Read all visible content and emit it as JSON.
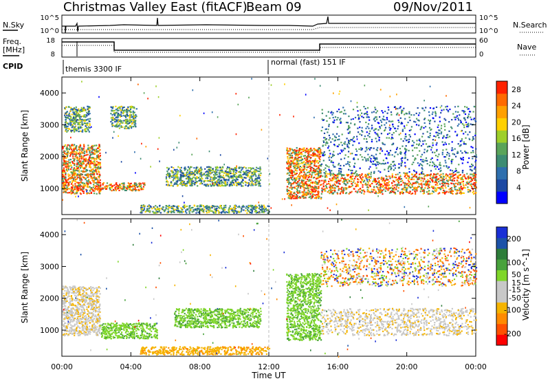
{
  "header": {
    "station": "Christmas Valley East (fitACF)",
    "beam": "Beam 09",
    "date": "09/Nov/2011"
  },
  "time_axis": {
    "label": "Time UT",
    "ticks": [
      "00:00",
      "04:00",
      "08:00",
      "12:00",
      "16:00",
      "20:00",
      "00:00"
    ]
  },
  "param_strip": {
    "nsky_label": "N.Sky",
    "nsearch_label": "N.Search",
    "freq_label": "Freq.",
    "freq_unit": "[MHz]",
    "nave_label": "Nave",
    "cpid_label": "CPID",
    "noise_left_ticks": [
      "10^5",
      "10^0"
    ],
    "noise_right_ticks": [
      "10^5",
      "10^0"
    ],
    "freq_ticks": [
      "18",
      "8"
    ],
    "nave_ticks": [
      "60",
      "0"
    ],
    "modes": [
      {
        "label": "themis 3300 IF"
      },
      {
        "label": "normal (fast) 151 IF"
      }
    ]
  },
  "colors": {
    "power": [
      "#0000ff",
      "#1d49a3",
      "#2e6fae",
      "#3d8c73",
      "#5aa45a",
      "#9ecf2a",
      "#ffd000",
      "#ffa000",
      "#ff6a00",
      "#ff2200"
    ],
    "velocity": [
      "#1a2fd6",
      "#1c52a8",
      "#2e7d3a",
      "#48a23c",
      "#7fd62a",
      "#c8c8c8",
      "#c8c8c8",
      "#f5b400",
      "#ff8a00",
      "#ff5000",
      "#ff0000"
    ]
  },
  "chart_data": [
    {
      "type": "heatmap",
      "title": "Power",
      "ylabel": "Slant Range [km]",
      "xlabel": "Time UT",
      "xlim": [
        0,
        24
      ],
      "ylim": [
        180,
        4500
      ],
      "y_ticks": [
        1000,
        2000,
        3000,
        4000
      ],
      "colorbar": {
        "label": "Power [dB]",
        "ticks": [
          4,
          8,
          12,
          16,
          20,
          24,
          28
        ],
        "range": [
          0,
          30
        ]
      },
      "regions": [
        {
          "t": [
            0.0,
            2.2
          ],
          "r": [
            850,
            2400
          ],
          "level": "high"
        },
        {
          "t": [
            0.1,
            1.6
          ],
          "r": [
            2800,
            3600
          ],
          "level": "mid"
        },
        {
          "t": [
            2.2,
            4.8
          ],
          "r": [
            950,
            1200
          ],
          "level": "high"
        },
        {
          "t": [
            2.8,
            4.3
          ],
          "r": [
            2900,
            3600
          ],
          "level": "mid"
        },
        {
          "t": [
            6.0,
            11.5
          ],
          "r": [
            1100,
            1700
          ],
          "level": "mid"
        },
        {
          "t": [
            4.5,
            12.0
          ],
          "r": [
            250,
            500
          ],
          "level": "mid"
        },
        {
          "t": [
            13.0,
            15.0
          ],
          "r": [
            700,
            2300
          ],
          "level": "high"
        },
        {
          "t": [
            15.0,
            24.0
          ],
          "r": [
            850,
            1500
          ],
          "level": "high"
        },
        {
          "t": [
            15.0,
            24.0
          ],
          "r": [
            1500,
            3600
          ],
          "level": "low"
        }
      ]
    },
    {
      "type": "heatmap",
      "title": "Velocity",
      "ylabel": "Slant Range [km]",
      "xlabel": "Time UT",
      "xlim": [
        0,
        24
      ],
      "ylim": [
        180,
        4500
      ],
      "y_ticks": [
        1000,
        2000,
        3000,
        4000
      ],
      "colorbar": {
        "label": "Velocity [m s^-1]",
        "ticks": [
          200,
          100,
          50,
          15,
          -15,
          -50,
          -100,
          -200
        ],
        "range": [
          -250,
          250
        ]
      },
      "regions": [
        {
          "t": [
            0.0,
            2.2
          ],
          "r": [
            850,
            2400
          ],
          "level": "ground"
        },
        {
          "t": [
            2.2,
            5.5
          ],
          "r": [
            750,
            1250
          ],
          "level": "positive"
        },
        {
          "t": [
            6.5,
            11.5
          ],
          "r": [
            1100,
            1700
          ],
          "level": "positive"
        },
        {
          "t": [
            4.5,
            12.0
          ],
          "r": [
            250,
            500
          ],
          "level": "negative"
        },
        {
          "t": [
            13.0,
            15.0
          ],
          "r": [
            700,
            2800
          ],
          "level": "positive"
        },
        {
          "t": [
            15.0,
            24.0
          ],
          "r": [
            850,
            1700
          ],
          "level": "ground"
        },
        {
          "t": [
            15.0,
            24.0
          ],
          "r": [
            2400,
            3600
          ],
          "level": "mixed"
        }
      ]
    }
  ]
}
